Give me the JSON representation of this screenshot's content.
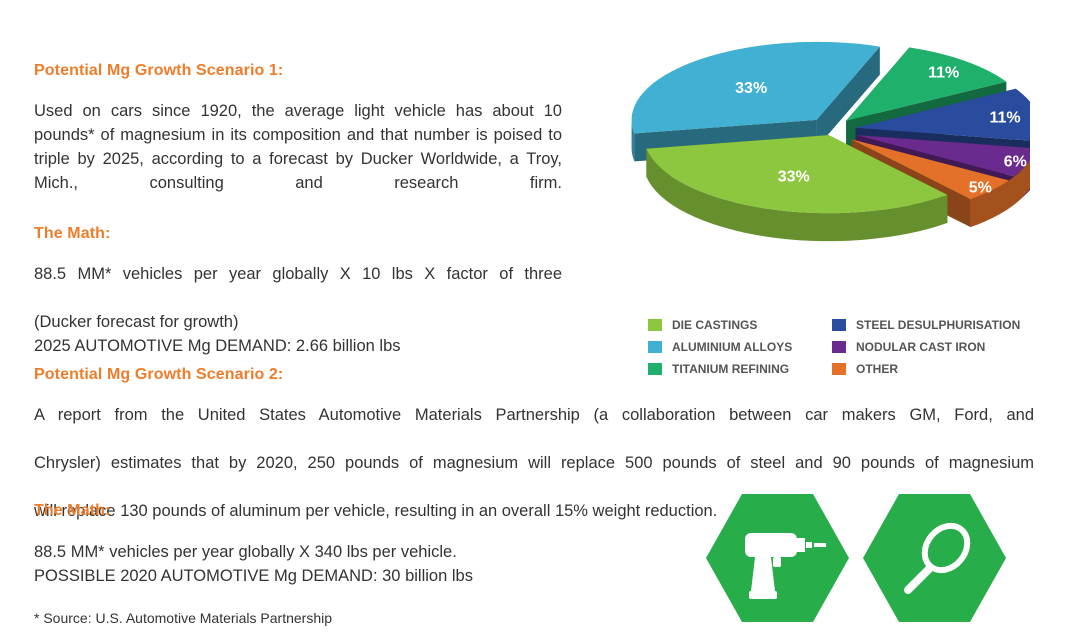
{
  "scenario1": {
    "heading": "Potential Mg Growth Scenario 1:",
    "body": "Used on cars since 1920, the average light vehicle has about 10 pounds* of magnesium in its composition and that number is poised to triple by 2025, according to a forecast by Ducker Worldwide, a Troy, Mich., consulting and research firm."
  },
  "math1": {
    "heading": "The Math:",
    "line1": "88.5 MM* vehicles per year globally X 10 lbs X factor of three",
    "line2": "(Ducker forecast for growth)",
    "line3": "2025 AUTOMOTIVE Mg DEMAND: 2.66 billion lbs"
  },
  "scenario2": {
    "heading": "Potential Mg Growth Scenario 2:",
    "line1": "A report from the United States Automotive Materials Partnership (a collaboration between car makers GM, Ford, and",
    "line2": "Chrysler) estimates that by 2020, 250 pounds of magnesium will replace 500 pounds of steel and 90 pounds of magnesium",
    "line3": "will replace 130 pounds of aluminum per vehicle, resulting in an overall 15% weight reduction."
  },
  "math2": {
    "heading": "The Math:",
    "line1": "88.5 MM* vehicles per year globally X 340 lbs per vehicle.",
    "line2": "POSSIBLE 2020 AUTOMOTIVE Mg DEMAND: 30 billion lbs"
  },
  "footnote": "* Source: U.S. Automotive Materials Partnership",
  "icons": [
    "drill-icon",
    "tennis-racket-icon"
  ],
  "chart_data": {
    "type": "pie",
    "style": "3d-exploded",
    "title": "",
    "legend_position": "bottom",
    "slices": [
      {
        "label": "DIE CASTINGS",
        "value": 33,
        "display": "33%",
        "color": "#8dc63f"
      },
      {
        "label": "ALUMINIUM ALLOYS",
        "value": 33,
        "display": "33%",
        "color": "#41b0d2"
      },
      {
        "label": "TITANIUM REFINING",
        "value": 11,
        "display": "11%",
        "color": "#1fb16b"
      },
      {
        "label": "STEEL DESULPHURISATION",
        "value": 11,
        "display": "11%",
        "color": "#2a4c9e"
      },
      {
        "label": "NODULAR CAST IRON",
        "value": 6,
        "display": "6%",
        "color": "#6a2a8e"
      },
      {
        "label": "OTHER",
        "value": 5,
        "display": "5%",
        "color": "#e4712a"
      }
    ]
  }
}
